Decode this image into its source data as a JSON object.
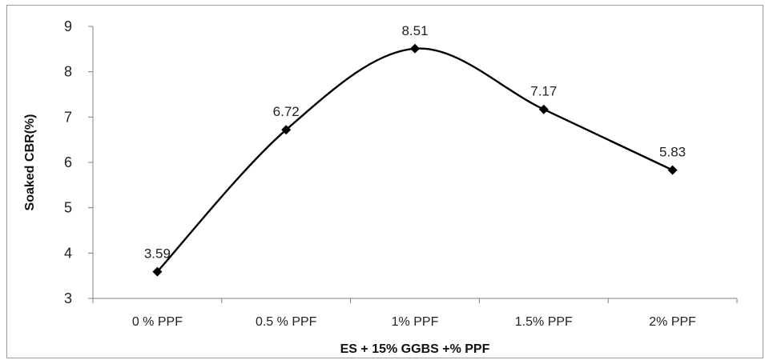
{
  "chart_data": {
    "type": "line",
    "categories": [
      "0 % PPF",
      "0.5 % PPF",
      "1% PPF",
      "1.5% PPF",
      "2% PPF"
    ],
    "values": [
      3.59,
      6.72,
      8.51,
      7.17,
      5.83
    ],
    "data_labels": [
      "3.59",
      "6.72",
      "8.51",
      "7.17",
      "5.83"
    ],
    "xlabel": "ES + 15% GGBS +% PPF",
    "ylabel": "Soaked CBR(%)",
    "ylim": [
      3,
      9
    ],
    "yticks": [
      "3",
      "4",
      "5",
      "6",
      "7",
      "8",
      "9"
    ],
    "grid": false,
    "smooth": true,
    "marker": "diamond",
    "line_color": "#000000"
  }
}
